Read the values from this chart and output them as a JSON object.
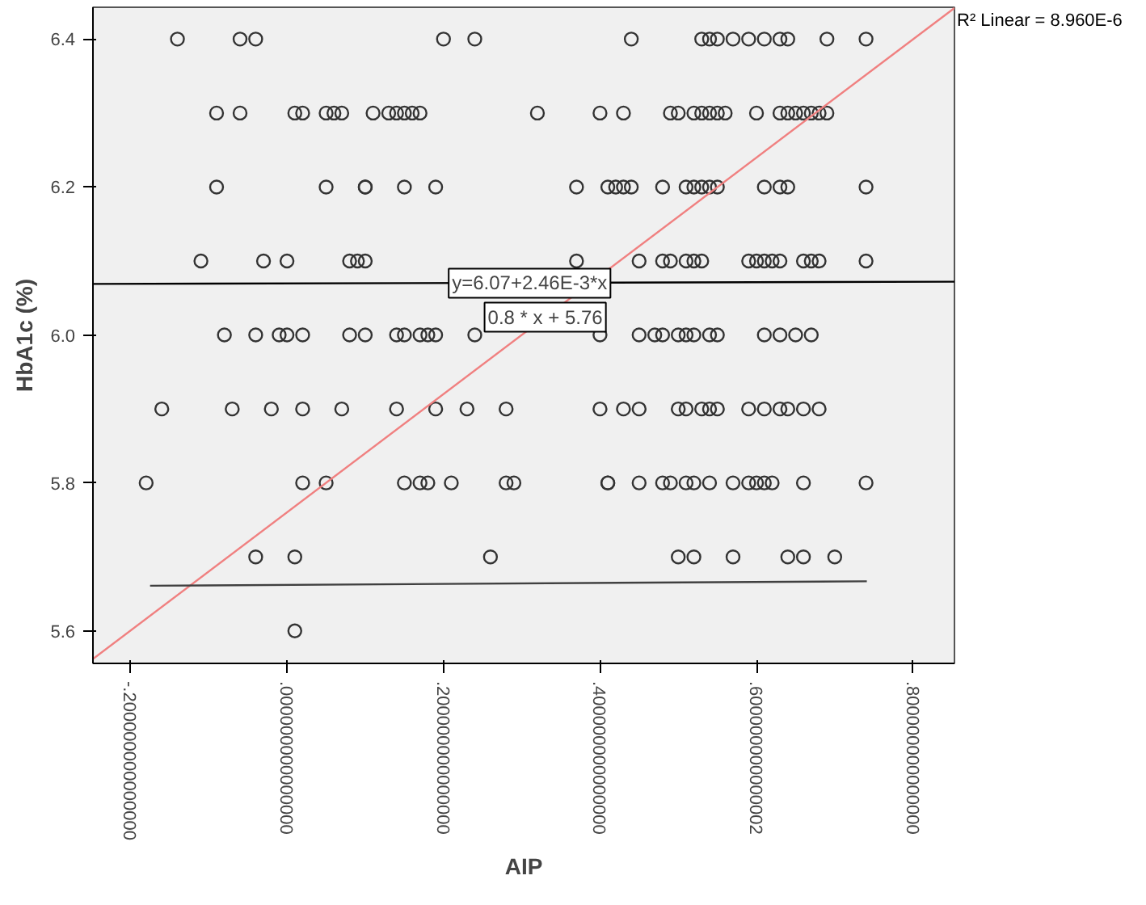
{
  "chart_data": {
    "type": "scatter",
    "xlabel": "AIP",
    "ylabel": "HbA1c (%)",
    "xlim": [
      -0.248,
      0.853
    ],
    "ylim": [
      5.556,
      6.443
    ],
    "xticks": [
      {
        "value": -0.2,
        "label": "-.200000000000000"
      },
      {
        "value": 0,
        "label": ".000000000000000"
      },
      {
        "value": 0.2,
        "label": ".200000000000000"
      },
      {
        "value": 0.4,
        "label": ".400000000000000"
      },
      {
        "value": 0.6,
        "label": ".600000000000002"
      },
      {
        "value": 0.8,
        "label": ".800000000000000"
      }
    ],
    "yticks": [
      5.6,
      5.8,
      {
        "value": 6.0,
        "label": "6.0"
      },
      6.2,
      6.4
    ],
    "grid": false,
    "marker": "circle",
    "series": [
      {
        "color": "#333333",
        "x": [
          -0.14,
          -0.06,
          -0.04,
          0.2,
          0.24,
          0.44,
          0.53,
          0.54,
          0.55,
          0.57,
          0.59,
          0.61,
          0.63,
          0.64,
          0.69,
          0.74
        ],
        "values": [
          6.4,
          6.4,
          6.4,
          6.4,
          6.4,
          6.4,
          6.4,
          6.4,
          6.4,
          6.4,
          6.4,
          6.4,
          6.4,
          6.4,
          6.4,
          6.4
        ]
      },
      {
        "color": "#333333",
        "x": [
          -0.09,
          -0.06,
          0.01,
          0.02,
          0.05,
          0.06,
          0.07,
          0.11,
          0.13,
          0.14,
          0.15,
          0.16,
          0.17,
          0.32,
          0.4,
          0.43,
          0.49,
          0.5,
          0.52,
          0.53,
          0.54,
          0.55,
          0.56,
          0.6,
          0.63,
          0.64,
          0.65,
          0.66,
          0.67,
          0.68,
          0.69
        ],
        "values": [
          6.3,
          6.3,
          6.3,
          6.3,
          6.3,
          6.3,
          6.3,
          6.3,
          6.3,
          6.3,
          6.3,
          6.3,
          6.3,
          6.3,
          6.3,
          6.3,
          6.3,
          6.3,
          6.3,
          6.3,
          6.3,
          6.3,
          6.3,
          6.3,
          6.3,
          6.3,
          6.3,
          6.3,
          6.3,
          6.3,
          6.3
        ]
      },
      {
        "color": "#333333",
        "x": [
          -0.09,
          0.05,
          0.1,
          0.1,
          0.15,
          0.19,
          0.37,
          0.41,
          0.42,
          0.43,
          0.44,
          0.48,
          0.51,
          0.52,
          0.53,
          0.54,
          0.55,
          0.61,
          0.63,
          0.64,
          0.74
        ],
        "values": [
          6.2,
          6.2,
          6.2,
          6.2,
          6.2,
          6.2,
          6.2,
          6.2,
          6.2,
          6.2,
          6.2,
          6.2,
          6.2,
          6.2,
          6.2,
          6.2,
          6.2,
          6.2,
          6.2,
          6.2,
          6.2
        ]
      },
      {
        "color": "#333333",
        "x": [
          -0.11,
          -0.03,
          0.0,
          0.08,
          0.09,
          0.1,
          0.37,
          0.45,
          0.48,
          0.49,
          0.51,
          0.52,
          0.53,
          0.59,
          0.6,
          0.61,
          0.62,
          0.63,
          0.66,
          0.67,
          0.68,
          0.74
        ],
        "values": [
          6.1,
          6.1,
          6.1,
          6.1,
          6.1,
          6.1,
          6.1,
          6.1,
          6.1,
          6.1,
          6.1,
          6.1,
          6.1,
          6.1,
          6.1,
          6.1,
          6.1,
          6.1,
          6.1,
          6.1,
          6.1,
          6.1
        ]
      },
      {
        "color": "#333333",
        "x": [
          -0.08,
          -0.04,
          -0.01,
          0.0,
          0.02,
          0.08,
          0.1,
          0.14,
          0.15,
          0.17,
          0.18,
          0.19,
          0.24,
          0.4,
          0.45,
          0.47,
          0.48,
          0.5,
          0.51,
          0.52,
          0.54,
          0.55,
          0.61,
          0.63,
          0.65,
          0.67
        ],
        "values": [
          6.0,
          6.0,
          6.0,
          6.0,
          6.0,
          6.0,
          6.0,
          6.0,
          6.0,
          6.0,
          6.0,
          6.0,
          6.0,
          6.0,
          6.0,
          6.0,
          6.0,
          6.0,
          6.0,
          6.0,
          6.0,
          6.0,
          6.0,
          6.0,
          6.0,
          6.0
        ]
      },
      {
        "color": "#333333",
        "x": [
          -0.16,
          -0.07,
          -0.02,
          0.02,
          0.07,
          0.14,
          0.19,
          0.23,
          0.28,
          0.4,
          0.43,
          0.45,
          0.5,
          0.51,
          0.53,
          0.54,
          0.55,
          0.59,
          0.61,
          0.63,
          0.64,
          0.66,
          0.68
        ],
        "values": [
          5.9,
          5.9,
          5.9,
          5.9,
          5.9,
          5.9,
          5.9,
          5.9,
          5.9,
          5.9,
          5.9,
          5.9,
          5.9,
          5.9,
          5.9,
          5.9,
          5.9,
          5.9,
          5.9,
          5.9,
          5.9,
          5.9,
          5.9
        ]
      },
      {
        "color": "#333333",
        "x": [
          -0.18,
          0.02,
          0.05,
          0.15,
          0.17,
          0.18,
          0.21,
          0.28,
          0.29,
          0.41,
          0.41,
          0.45,
          0.48,
          0.49,
          0.51,
          0.52,
          0.54,
          0.57,
          0.59,
          0.6,
          0.61,
          0.62,
          0.66,
          0.74
        ],
        "values": [
          5.8,
          5.8,
          5.8,
          5.8,
          5.8,
          5.8,
          5.8,
          5.8,
          5.8,
          5.8,
          5.8,
          5.8,
          5.8,
          5.8,
          5.8,
          5.8,
          5.8,
          5.8,
          5.8,
          5.8,
          5.8,
          5.8,
          5.8,
          5.8
        ]
      },
      {
        "color": "#333333",
        "x": [
          -0.04,
          0.01,
          0.26,
          0.5,
          0.52,
          0.57,
          0.64,
          0.66,
          0.7
        ],
        "values": [
          5.7,
          5.7,
          5.7,
          5.7,
          5.7,
          5.7,
          5.7,
          5.7,
          5.7
        ]
      },
      {
        "color": "#333333",
        "x": [
          0.01
        ],
        "values": [
          5.6
        ]
      },
      {
        "type": "line",
        "marker": "none",
        "color": "#000000",
        "x": [
          -0.248,
          0.853
        ],
        "values": [
          6.069,
          6.072
        ]
      },
      {
        "type": "line",
        "marker": "none",
        "color": "#f08080",
        "x": [
          -0.248,
          0.853
        ],
        "values": [
          5.562,
          6.442
        ]
      },
      {
        "type": "line",
        "marker": "none",
        "color": "#404040",
        "x": [
          -0.175,
          0.741
        ],
        "values": [
          5.661,
          5.667
        ]
      }
    ],
    "annotations": [
      {
        "text": "y=6.07+2.46E-3*x",
        "x": 0.31,
        "y": 6.07
      },
      {
        "text": "0.8 * x + 5.76",
        "x": 0.33,
        "y": 6.024
      },
      "R² Linear = 8.960E-6"
    ]
  }
}
